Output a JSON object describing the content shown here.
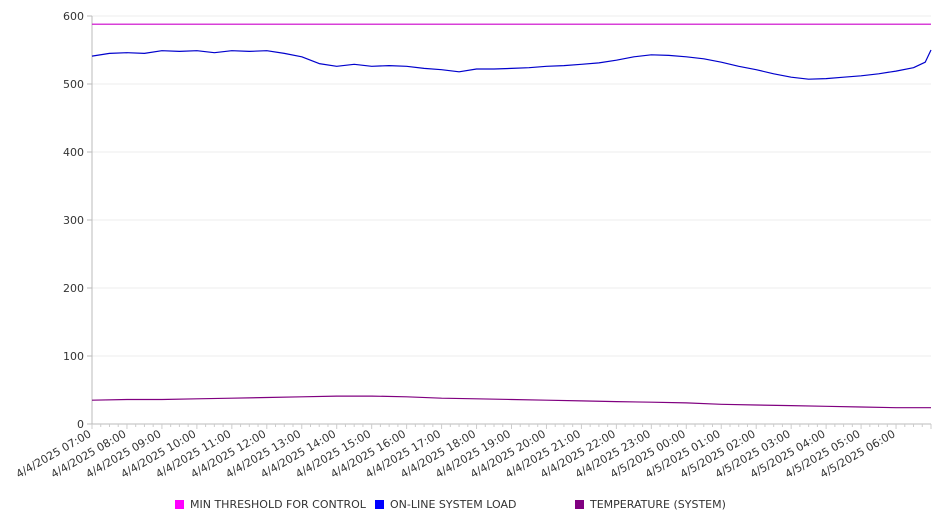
{
  "chart_data": {
    "type": "line",
    "title": "",
    "xlabel": "",
    "ylabel": "",
    "ylim": [
      0,
      600
    ],
    "yticks": [
      0,
      100,
      200,
      300,
      400,
      500,
      600
    ],
    "xticks": [
      "4/4/2025 07:00",
      "4/4/2025 08:00",
      "4/4/2025 09:00",
      "4/4/2025 10:00",
      "4/4/2025 11:00",
      "4/4/2025 12:00",
      "4/4/2025 13:00",
      "4/4/2025 14:00",
      "4/4/2025 15:00",
      "4/4/2025 16:00",
      "4/4/2025 17:00",
      "4/4/2025 18:00",
      "4/4/2025 19:00",
      "4/4/2025 20:00",
      "4/4/2025 21:00",
      "4/4/2025 22:00",
      "4/4/2025 23:00",
      "4/5/2025 00:00",
      "4/5/2025 01:00",
      "4/5/2025 02:00",
      "4/5/2025 03:00",
      "4/5/2025 04:00",
      "4/5/2025 05:00",
      "4/5/2025 06:00"
    ],
    "grid": true,
    "legend_position": "bottom",
    "series": [
      {
        "name": "MIN THRESHOLD FOR CONTROL",
        "color": "#cc00cc",
        "x": [
          "4/4/2025 07:00",
          "4/5/2025 07:00"
        ],
        "values": [
          588,
          588
        ]
      },
      {
        "name": "ON-LINE SYSTEM LOAD",
        "color": "#0000cc",
        "x": [
          "4/4/2025 07:00",
          "4/4/2025 07:30",
          "4/4/2025 08:00",
          "4/4/2025 08:30",
          "4/4/2025 09:00",
          "4/4/2025 09:30",
          "4/4/2025 10:00",
          "4/4/2025 10:30",
          "4/4/2025 11:00",
          "4/4/2025 11:30",
          "4/4/2025 12:00",
          "4/4/2025 12:30",
          "4/4/2025 13:00",
          "4/4/2025 13:30",
          "4/4/2025 14:00",
          "4/4/2025 14:30",
          "4/4/2025 15:00",
          "4/4/2025 15:30",
          "4/4/2025 16:00",
          "4/4/2025 16:30",
          "4/4/2025 17:00",
          "4/4/2025 17:30",
          "4/4/2025 18:00",
          "4/4/2025 18:30",
          "4/4/2025 19:00",
          "4/4/2025 19:30",
          "4/4/2025 20:00",
          "4/4/2025 20:30",
          "4/4/2025 21:00",
          "4/4/2025 21:30",
          "4/4/2025 22:00",
          "4/4/2025 22:30",
          "4/4/2025 23:00",
          "4/4/2025 23:30",
          "4/5/2025 00:00",
          "4/5/2025 00:30",
          "4/5/2025 01:00",
          "4/5/2025 01:30",
          "4/5/2025 02:00",
          "4/5/2025 02:30",
          "4/5/2025 03:00",
          "4/5/2025 03:30",
          "4/5/2025 04:00",
          "4/5/2025 04:30",
          "4/5/2025 05:00",
          "4/5/2025 05:30",
          "4/5/2025 06:00",
          "4/5/2025 06:30",
          "4/5/2025 06:50",
          "4/5/2025 07:00"
        ],
        "values": [
          541,
          545,
          546,
          545,
          549,
          548,
          549,
          546,
          549,
          548,
          549,
          545,
          540,
          530,
          526,
          529,
          526,
          527,
          526,
          523,
          521,
          518,
          522,
          522,
          523,
          524,
          526,
          527,
          529,
          531,
          535,
          540,
          543,
          542,
          540,
          537,
          532,
          526,
          521,
          515,
          510,
          507,
          508,
          510,
          512,
          515,
          519,
          524,
          532,
          550
        ]
      },
      {
        "name": "TEMPERATURE (SYSTEM)",
        "color": "#800080",
        "x": [
          "4/4/2025 07:00",
          "4/4/2025 08:00",
          "4/4/2025 09:00",
          "4/4/2025 10:00",
          "4/4/2025 11:00",
          "4/4/2025 12:00",
          "4/4/2025 13:00",
          "4/4/2025 14:00",
          "4/4/2025 15:00",
          "4/4/2025 16:00",
          "4/4/2025 17:00",
          "4/4/2025 18:00",
          "4/4/2025 19:00",
          "4/4/2025 20:00",
          "4/4/2025 21:00",
          "4/4/2025 22:00",
          "4/4/2025 23:00",
          "4/5/2025 00:00",
          "4/5/2025 01:00",
          "4/5/2025 02:00",
          "4/5/2025 03:00",
          "4/5/2025 04:00",
          "4/5/2025 05:00",
          "4/5/2025 06:00",
          "4/5/2025 07:00"
        ],
        "values": [
          35,
          36,
          36,
          37,
          38,
          39,
          40,
          41,
          41,
          40,
          38,
          37,
          36,
          35,
          34,
          33,
          32,
          31,
          29,
          28,
          27,
          26,
          25,
          24,
          24
        ]
      }
    ]
  }
}
